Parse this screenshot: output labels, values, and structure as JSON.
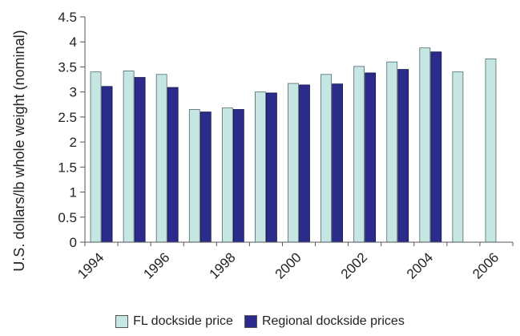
{
  "chart_data": {
    "type": "bar",
    "title": "",
    "xlabel": "",
    "ylabel": "U.S. dollars/lb whole weight (nominal)",
    "ylim": [
      0,
      4.5
    ],
    "yticks": [
      "0",
      "0.5",
      "1",
      "1.5",
      "2",
      "2.5",
      "3",
      "3.5",
      "4",
      "4.5"
    ],
    "categories": [
      "1994",
      "1995",
      "1996",
      "1997",
      "1998",
      "1999",
      "2000",
      "2001",
      "2002",
      "2003",
      "2004",
      "2005",
      "2006"
    ],
    "xtick_labels": [
      "1994",
      "1996",
      "1998",
      "2000",
      "2002",
      "2004",
      "2006"
    ],
    "series": [
      {
        "name": "FL dockside price",
        "color": "#c6e6e3",
        "values": [
          3.4,
          3.42,
          3.35,
          2.65,
          2.68,
          3.0,
          3.17,
          3.35,
          3.51,
          3.6,
          3.88,
          3.4,
          3.66
        ]
      },
      {
        "name": "Regional dockside prices",
        "color": "#2b2b8c",
        "values": [
          3.11,
          3.29,
          3.09,
          2.6,
          2.65,
          2.98,
          3.14,
          3.16,
          3.38,
          3.45,
          3.8,
          null,
          null
        ]
      }
    ],
    "grid": false,
    "legend_position": "bottom"
  }
}
